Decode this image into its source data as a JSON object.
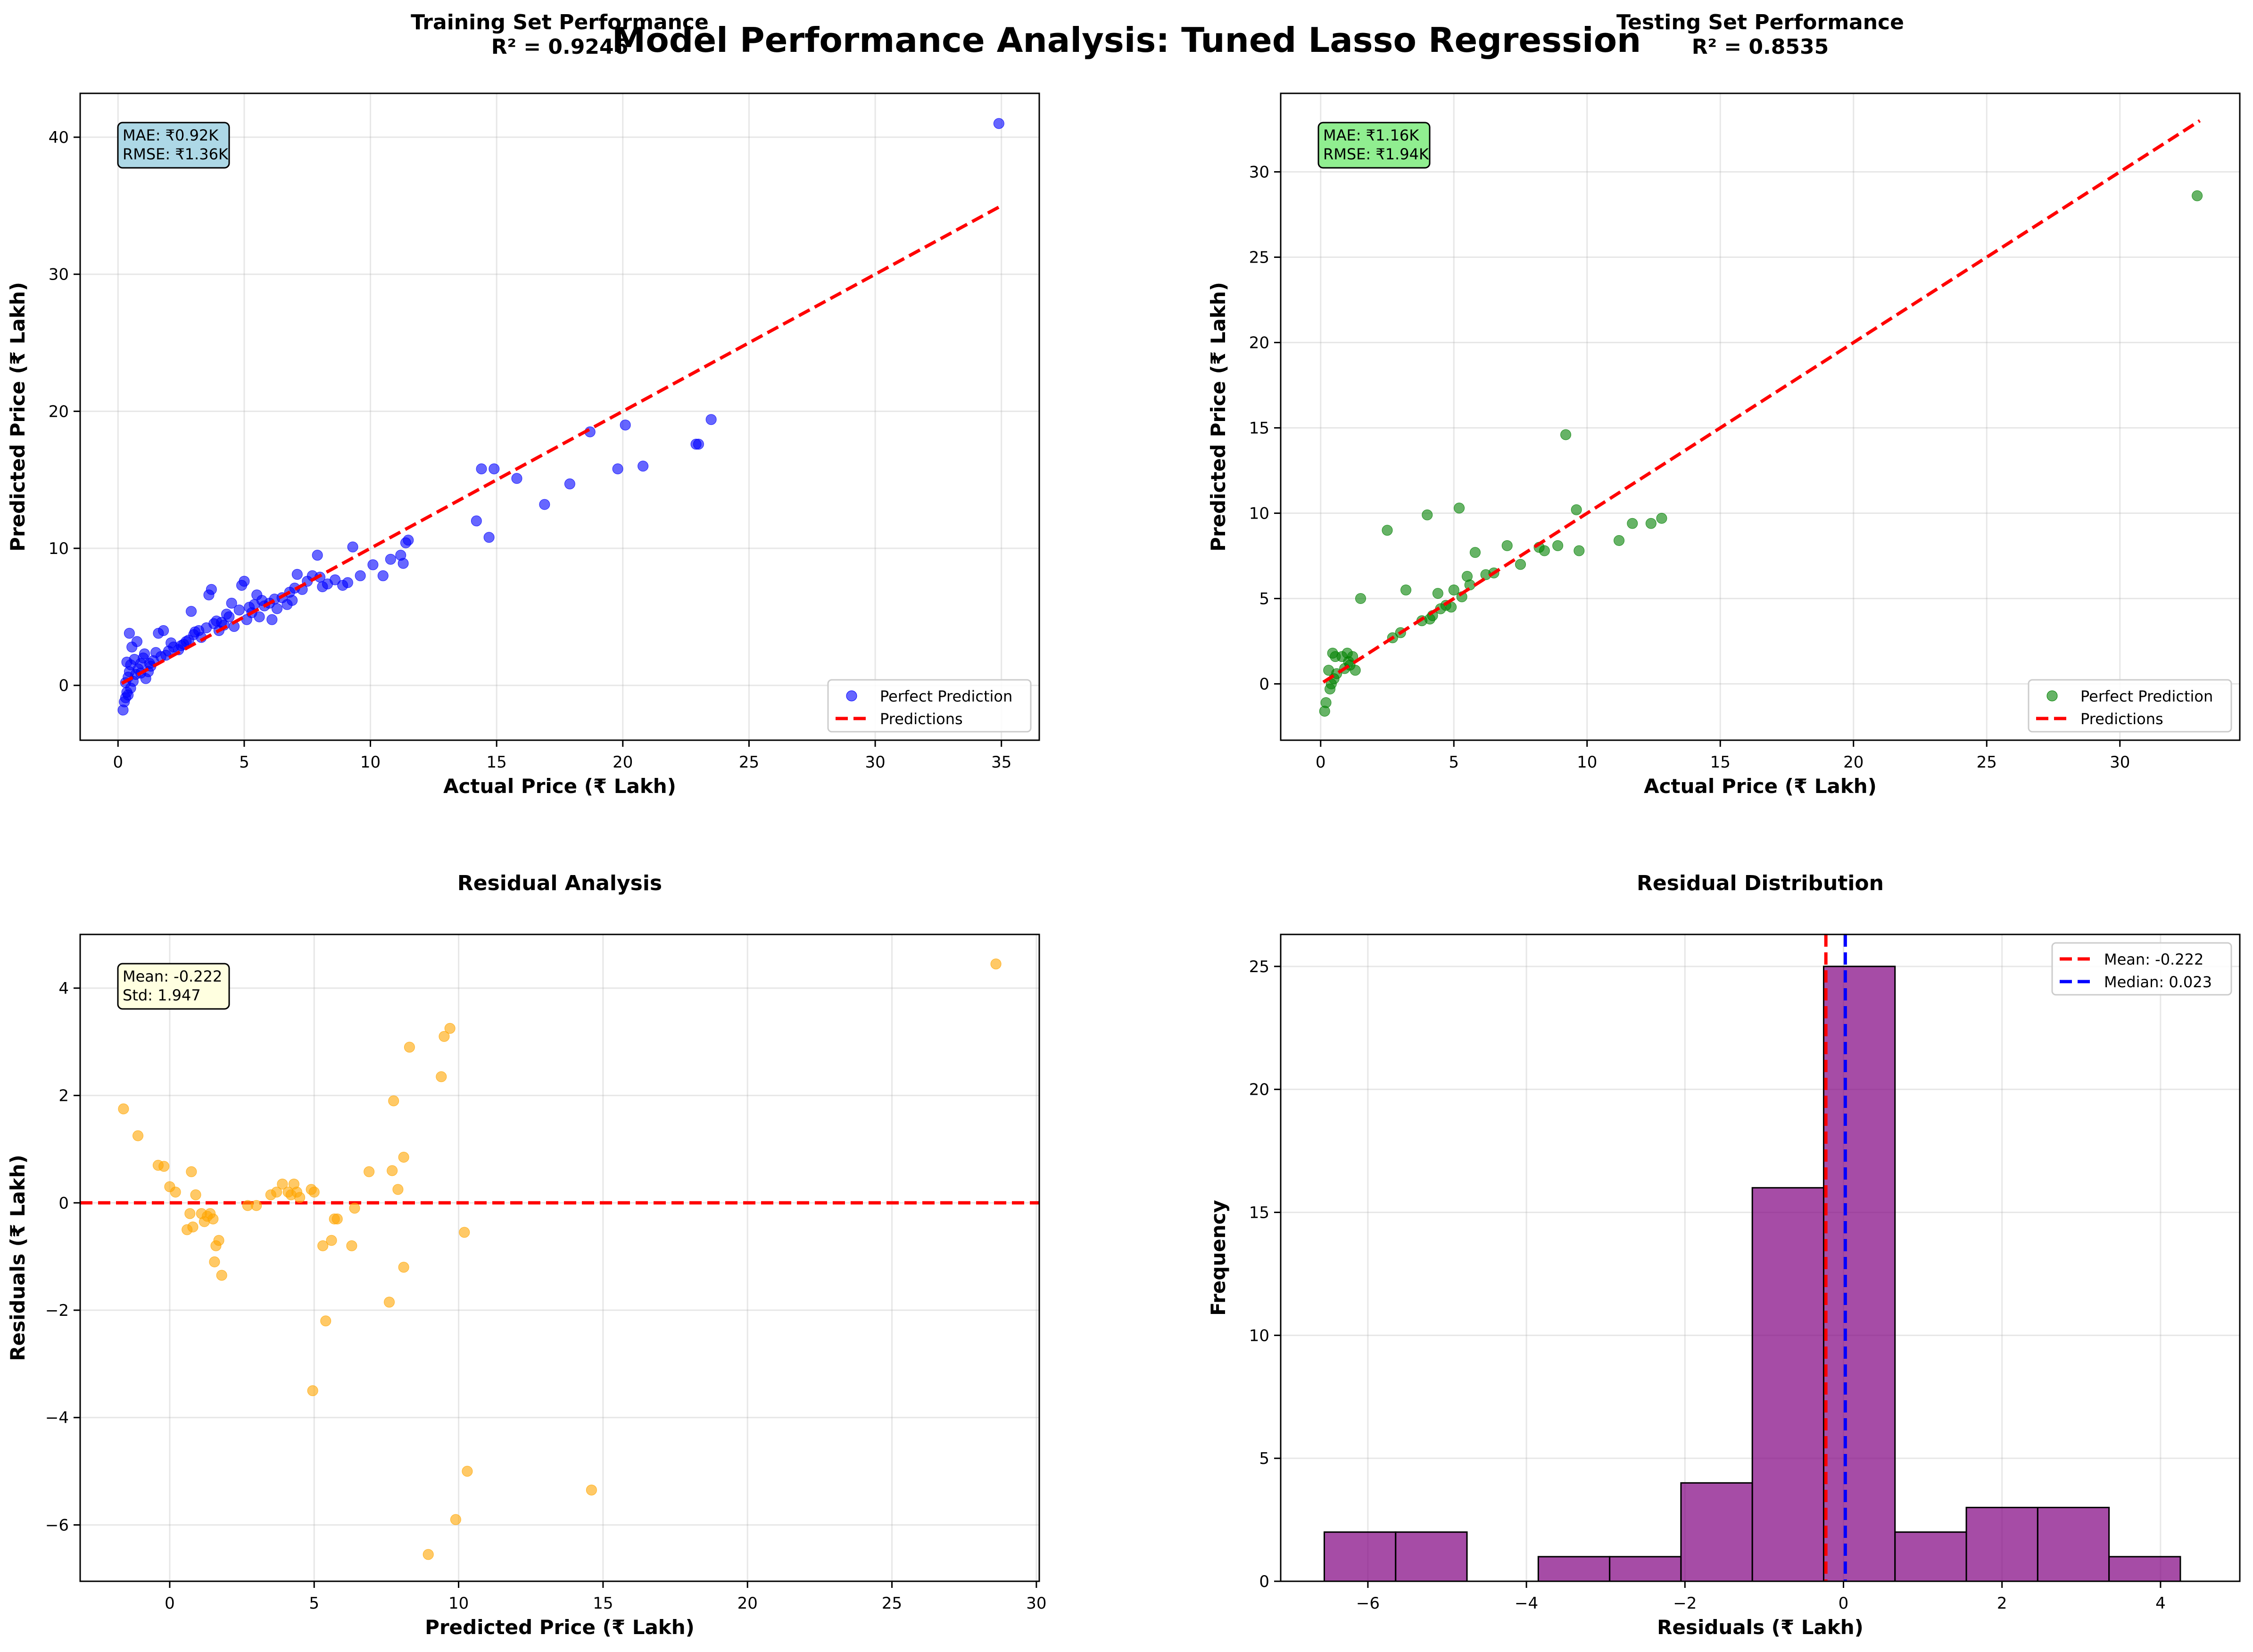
{
  "figure": {
    "suptitle": "Model Performance Analysis: Tuned Lasso Regression"
  },
  "chart_data": [
    {
      "type": "scatter",
      "title_line1": "Training Set Performance",
      "title_line2": "R² = 0.9246",
      "xlabel": "Actual Price (₹ Lakh)",
      "ylabel": "Predicted Price (₹ Lakh)",
      "xlim": [
        -1.5,
        36.5
      ],
      "ylim": [
        -4,
        43.2
      ],
      "xticks": [
        0,
        5,
        10,
        15,
        20,
        25,
        30,
        35
      ],
      "yticks": [
        0,
        10,
        20,
        30,
        40
      ],
      "grid": true,
      "legend_position": "lower-right",
      "legend": [
        "Perfect Prediction",
        "Predictions"
      ],
      "stats_box": [
        "MAE: ₹0.92K",
        "RMSE: ₹1.36K"
      ],
      "stats_box_color": "#add8e6",
      "point_color": "#0000ff",
      "line_color": "#ff0000",
      "reference_line": {
        "from": [
          0.15,
          0.15
        ],
        "to": [
          35,
          35
        ]
      },
      "series": [
        {
          "points": [
            [
              0.2,
              -1.8
            ],
            [
              0.25,
              -1.2
            ],
            [
              0.3,
              -0.9
            ],
            [
              0.35,
              -0.5
            ],
            [
              0.3,
              0.2
            ],
            [
              0.4,
              0.6
            ],
            [
              0.45,
              1.0
            ],
            [
              0.5,
              1.5
            ],
            [
              0.35,
              1.7
            ],
            [
              0.55,
              2.8
            ],
            [
              0.45,
              3.8
            ],
            [
              0.6,
              0.3
            ],
            [
              0.7,
              0.8
            ],
            [
              0.8,
              1.2
            ],
            [
              0.9,
              1.6
            ],
            [
              1.0,
              2.0
            ],
            [
              0.75,
              3.2
            ],
            [
              1.1,
              0.5
            ],
            [
              1.2,
              1.0
            ],
            [
              1.3,
              1.4
            ],
            [
              1.4,
              1.8
            ],
            [
              1.5,
              2.4
            ],
            [
              1.6,
              3.8
            ],
            [
              1.8,
              4.0
            ],
            [
              1.9,
              2.2
            ],
            [
              2.0,
              2.5
            ],
            [
              2.2,
              2.8
            ],
            [
              2.4,
              2.6
            ],
            [
              2.6,
              3.0
            ],
            [
              2.8,
              3.3
            ],
            [
              2.9,
              5.4
            ],
            [
              3.0,
              3.7
            ],
            [
              3.2,
              4.0
            ],
            [
              3.3,
              3.5
            ],
            [
              3.5,
              4.2
            ],
            [
              3.6,
              6.6
            ],
            [
              3.7,
              7.0
            ],
            [
              3.8,
              4.5
            ],
            [
              4.0,
              4.0
            ],
            [
              4.2,
              4.4
            ],
            [
              4.3,
              5.2
            ],
            [
              4.5,
              6.0
            ],
            [
              4.6,
              4.3
            ],
            [
              4.8,
              5.5
            ],
            [
              4.9,
              7.3
            ],
            [
              5.0,
              7.6
            ],
            [
              5.1,
              4.8
            ],
            [
              5.3,
              5.3
            ],
            [
              5.5,
              6.6
            ],
            [
              5.6,
              5.0
            ],
            [
              5.8,
              5.8
            ],
            [
              6.0,
              6.0
            ],
            [
              6.1,
              4.8
            ],
            [
              6.3,
              5.6
            ],
            [
              6.5,
              6.4
            ],
            [
              6.7,
              5.9
            ],
            [
              6.9,
              6.2
            ],
            [
              7.1,
              8.1
            ],
            [
              7.3,
              7.0
            ],
            [
              7.5,
              7.6
            ],
            [
              7.7,
              8.0
            ],
            [
              7.9,
              9.5
            ],
            [
              8.1,
              7.2
            ],
            [
              8.3,
              7.4
            ],
            [
              8.6,
              7.7
            ],
            [
              8.9,
              7.3
            ],
            [
              9.1,
              7.5
            ],
            [
              9.3,
              10.1
            ],
            [
              9.6,
              8.0
            ],
            [
              10.1,
              8.8
            ],
            [
              10.5,
              8.0
            ],
            [
              10.8,
              9.2
            ],
            [
              11.2,
              9.5
            ],
            [
              11.3,
              8.9
            ],
            [
              11.4,
              10.4
            ],
            [
              11.5,
              10.6
            ],
            [
              14.2,
              12.0
            ],
            [
              14.4,
              15.8
            ],
            [
              14.7,
              10.8
            ],
            [
              14.9,
              15.8
            ],
            [
              15.8,
              15.1
            ],
            [
              16.9,
              13.2
            ],
            [
              17.9,
              14.7
            ],
            [
              18.7,
              18.5
            ],
            [
              19.8,
              15.8
            ],
            [
              20.1,
              19.0
            ],
            [
              20.8,
              16.0
            ],
            [
              22.9,
              17.6
            ],
            [
              23.0,
              17.6
            ],
            [
              23.5,
              19.4
            ],
            [
              34.9,
              41.0
            ],
            [
              0.5,
              -0.2
            ],
            [
              0.65,
              1.9
            ],
            [
              1.05,
              2.3
            ],
            [
              2.1,
              3.1
            ],
            [
              3.05,
              3.9
            ],
            [
              4.4,
              5.0
            ],
            [
              5.7,
              6.2
            ],
            [
              6.8,
              6.8
            ],
            [
              0.9,
              0.9
            ],
            [
              1.7,
              2.1
            ],
            [
              2.5,
              2.9
            ],
            [
              3.9,
              4.7
            ],
            [
              5.2,
              5.7
            ],
            [
              6.2,
              6.3
            ],
            [
              7.0,
              7.1
            ],
            [
              8.0,
              7.9
            ],
            [
              0.4,
              -0.7
            ],
            [
              1.25,
              1.6
            ],
            [
              2.7,
              3.2
            ],
            [
              4.1,
              4.6
            ],
            [
              5.4,
              5.9
            ]
          ]
        }
      ]
    },
    {
      "type": "scatter",
      "title_line1": "Testing Set Performance",
      "title_line2": "R² = 0.8535",
      "xlabel": "Actual Price (₹ Lakh)",
      "ylabel": "Predicted Price (₹ Lakh)",
      "xlim": [
        -1.5,
        34.5
      ],
      "ylim": [
        -3.3,
        34.6
      ],
      "xticks": [
        0,
        5,
        10,
        15,
        20,
        25,
        30
      ],
      "yticks": [
        0,
        5,
        10,
        15,
        20,
        25,
        30
      ],
      "grid": true,
      "legend_position": "lower-right",
      "legend": [
        "Perfect Prediction",
        "Predictions"
      ],
      "stats_box": [
        "MAE: ₹1.16K",
        "RMSE: ₹1.94K"
      ],
      "stats_box_color": "#90ee90",
      "point_color": "#008000",
      "line_color": "#ff0000",
      "reference_line": {
        "from": [
          0.1,
          0.1
        ],
        "to": [
          33,
          33
        ]
      },
      "series": [
        {
          "points": [
            [
              0.15,
              -1.6
            ],
            [
              0.2,
              -1.1
            ],
            [
              0.3,
              0.8
            ],
            [
              0.35,
              -0.3
            ],
            [
              0.4,
              0.0
            ],
            [
              0.45,
              1.8
            ],
            [
              0.5,
              0.3
            ],
            [
              0.55,
              1.6
            ],
            [
              0.6,
              0.6
            ],
            [
              0.8,
              1.6
            ],
            [
              0.9,
              0.9
            ],
            [
              1.0,
              1.8
            ],
            [
              1.05,
              1.3
            ],
            [
              1.1,
              1.1
            ],
            [
              1.2,
              1.6
            ],
            [
              1.3,
              0.8
            ],
            [
              1.5,
              5.0
            ],
            [
              2.5,
              9.0
            ],
            [
              2.7,
              2.7
            ],
            [
              3.0,
              3.0
            ],
            [
              3.2,
              5.5
            ],
            [
              3.8,
              3.7
            ],
            [
              4.0,
              9.9
            ],
            [
              4.1,
              3.8
            ],
            [
              4.2,
              4.0
            ],
            [
              4.4,
              5.3
            ],
            [
              4.5,
              4.4
            ],
            [
              4.7,
              4.6
            ],
            [
              4.9,
              4.5
            ],
            [
              5.0,
              5.5
            ],
            [
              5.2,
              10.3
            ],
            [
              5.3,
              5.1
            ],
            [
              5.5,
              6.3
            ],
            [
              5.6,
              5.8
            ],
            [
              5.8,
              7.7
            ],
            [
              6.2,
              6.4
            ],
            [
              6.5,
              6.5
            ],
            [
              7.0,
              8.1
            ],
            [
              7.5,
              7.0
            ],
            [
              8.2,
              8.0
            ],
            [
              8.4,
              7.8
            ],
            [
              8.9,
              8.1
            ],
            [
              9.2,
              14.6
            ],
            [
              9.6,
              10.2
            ],
            [
              9.7,
              7.8
            ],
            [
              11.2,
              8.4
            ],
            [
              11.7,
              9.4
            ],
            [
              12.4,
              9.4
            ],
            [
              12.8,
              9.7
            ],
            [
              32.9,
              28.6
            ]
          ]
        }
      ]
    },
    {
      "type": "scatter",
      "title": "Residual Analysis",
      "xlabel": "Predicted Price (₹ Lakh)",
      "ylabel": "Residuals (₹ Lakh)",
      "xlim": [
        -3.1,
        30.1
      ],
      "ylim": [
        -7.05,
        5.0
      ],
      "xticks": [
        0,
        5,
        10,
        15,
        20,
        25,
        30
      ],
      "yticks": [
        -6,
        -4,
        -2,
        0,
        2,
        4
      ],
      "grid": true,
      "stats_box": [
        "Mean: -0.222",
        "Std: 1.947"
      ],
      "stats_box_color": "#ffffe0",
      "point_color": "#ffa500",
      "zero_line_color": "#ff0000",
      "series": [
        {
          "points": [
            [
              -1.6,
              1.75
            ],
            [
              -1.1,
              1.25
            ],
            [
              -0.4,
              0.7
            ],
            [
              -0.2,
              0.68
            ],
            [
              0.0,
              0.3
            ],
            [
              0.2,
              0.2
            ],
            [
              0.6,
              -0.5
            ],
            [
              0.7,
              -0.2
            ],
            [
              0.75,
              0.58
            ],
            [
              0.8,
              -0.45
            ],
            [
              0.9,
              0.15
            ],
            [
              1.1,
              -0.2
            ],
            [
              1.2,
              -0.35
            ],
            [
              1.3,
              -0.25
            ],
            [
              1.4,
              -0.2
            ],
            [
              1.5,
              -0.3
            ],
            [
              1.55,
              -1.1
            ],
            [
              1.6,
              -0.8
            ],
            [
              1.7,
              -0.7
            ],
            [
              1.8,
              -1.35
            ],
            [
              2.7,
              -0.05
            ],
            [
              3.0,
              -0.05
            ],
            [
              3.5,
              0.15
            ],
            [
              3.7,
              0.2
            ],
            [
              3.9,
              0.35
            ],
            [
              4.1,
              0.2
            ],
            [
              4.2,
              0.15
            ],
            [
              4.3,
              0.35
            ],
            [
              4.4,
              0.2
            ],
            [
              4.5,
              0.1
            ],
            [
              4.9,
              0.25
            ],
            [
              5.0,
              0.2
            ],
            [
              4.95,
              -3.5
            ],
            [
              5.3,
              -0.8
            ],
            [
              5.4,
              -2.2
            ],
            [
              5.6,
              -0.7
            ],
            [
              5.7,
              -0.3
            ],
            [
              5.8,
              -0.3
            ],
            [
              6.3,
              -0.8
            ],
            [
              6.4,
              -0.1
            ],
            [
              6.9,
              0.58
            ],
            [
              7.6,
              -1.85
            ],
            [
              7.7,
              0.6
            ],
            [
              7.75,
              1.9
            ],
            [
              7.9,
              0.25
            ],
            [
              8.1,
              -1.2
            ],
            [
              8.1,
              0.85
            ],
            [
              8.3,
              2.9
            ],
            [
              8.95,
              -6.55
            ],
            [
              9.4,
              2.35
            ],
            [
              9.5,
              3.1
            ],
            [
              9.7,
              3.25
            ],
            [
              9.9,
              -5.9
            ],
            [
              10.2,
              -0.55
            ],
            [
              10.3,
              -5.0
            ],
            [
              14.6,
              -5.35
            ],
            [
              28.6,
              4.45
            ]
          ]
        }
      ]
    },
    {
      "type": "bar",
      "subtype": "histogram",
      "title": "Residual Distribution",
      "xlabel": "Residuals (₹ Lakh)",
      "ylabel": "Frequency",
      "xlim": [
        -7.1,
        5.0
      ],
      "ylim": [
        0,
        26.3
      ],
      "xticks": [
        -6,
        -4,
        -2,
        0,
        2,
        4
      ],
      "yticks": [
        0,
        5,
        10,
        15,
        20,
        25
      ],
      "grid": true,
      "legend_position": "top-right",
      "bar_color": "#800080",
      "bin_edges": [
        -6.55,
        -5.65,
        -4.75,
        -3.85,
        -2.95,
        -2.05,
        -1.15,
        -0.25,
        0.65,
        1.55,
        2.45,
        3.35,
        4.25
      ],
      "counts": [
        2,
        2,
        0,
        1,
        1,
        4,
        16,
        25,
        2,
        3,
        3,
        1
      ],
      "lines": [
        {
          "label": "Mean: -0.222",
          "value": -0.222,
          "color": "#ff0000"
        },
        {
          "label": "Median: 0.023",
          "value": 0.023,
          "color": "#0000ff"
        }
      ]
    }
  ]
}
